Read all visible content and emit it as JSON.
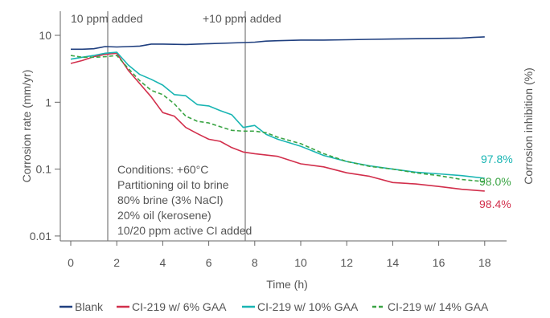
{
  "chart_data": {
    "type": "line",
    "title": "",
    "xlabel": "Time (h)",
    "ylabel": "Corrosion rate (mm/yr)",
    "y2label": "Corrosion inhibition (%)",
    "xlim": [
      -0.5,
      19.5
    ],
    "ylim": [
      0.01,
      14
    ],
    "yscale": "log",
    "grid": false,
    "x_ticks": [
      0,
      2,
      4,
      6,
      8,
      10,
      12,
      14,
      16,
      18
    ],
    "y_ticks": [
      {
        "value": 10,
        "label": "10"
      },
      {
        "value": 1,
        "label": "1"
      },
      {
        "value": 0.1,
        "label": "0.1"
      },
      {
        "value": 0.01,
        "label": "0.01"
      }
    ],
    "events": [
      {
        "x": 2,
        "label": "10 ppm added"
      },
      {
        "x": 8,
        "label": "+10 ppm added"
      }
    ],
    "conditions": [
      "Conditions: +60°C",
      "Partitioning oil to brine",
      "80% brine (3% NaCl)",
      "20% oil (kerosene)",
      "10/20 ppm active CI added"
    ],
    "legend_position": "bottom",
    "series": [
      {
        "name": "Blank",
        "color": "#1f3f7f",
        "dash": "solid",
        "x": [
          0,
          0.5,
          1,
          1.5,
          2,
          2.5,
          3,
          3.5,
          4,
          5,
          6,
          7,
          8,
          8.5,
          9,
          10,
          11,
          12,
          13,
          14,
          15,
          16,
          17,
          17.5,
          18
        ],
        "y": [
          6.2,
          6.2,
          6.3,
          6.8,
          6.7,
          6.8,
          6.9,
          7.4,
          7.4,
          7.3,
          7.5,
          7.7,
          7.9,
          8.2,
          8.3,
          8.5,
          8.5,
          8.6,
          8.7,
          8.8,
          8.9,
          9.0,
          9.1,
          9.3,
          9.5
        ]
      },
      {
        "name": "CI-219 w/ 6% GAA",
        "color": "#d22f4c",
        "dash": "solid",
        "end_label": "98.4%",
        "x": [
          0,
          0.5,
          1,
          1.5,
          2,
          2.5,
          3,
          3.5,
          4,
          4.5,
          5,
          5.5,
          6,
          6.5,
          7,
          7.5,
          8,
          9,
          10,
          11,
          12,
          13,
          14,
          15,
          16,
          17,
          18
        ],
        "y": [
          3.8,
          4.2,
          4.8,
          5.2,
          5.4,
          3.0,
          1.9,
          1.2,
          0.7,
          0.62,
          0.42,
          0.34,
          0.28,
          0.26,
          0.21,
          0.18,
          0.17,
          0.155,
          0.12,
          0.108,
          0.088,
          0.078,
          0.063,
          0.06,
          0.055,
          0.05,
          0.047
        ]
      },
      {
        "name": "CI-219 w/ 10% GAA",
        "color": "#19b5b3",
        "dash": "solid",
        "end_label": "97.8%",
        "x": [
          0,
          0.5,
          1,
          1.5,
          2,
          2.5,
          3,
          3.5,
          4,
          4.5,
          5,
          5.5,
          6,
          6.5,
          7,
          7.5,
          8,
          8.5,
          9,
          10,
          11,
          12,
          13,
          14,
          15,
          16,
          17,
          18
        ],
        "y": [
          4.4,
          4.7,
          5.0,
          5.4,
          5.6,
          3.6,
          2.6,
          2.2,
          1.8,
          1.3,
          1.25,
          0.92,
          0.88,
          0.75,
          0.65,
          0.42,
          0.45,
          0.33,
          0.28,
          0.22,
          0.16,
          0.13,
          0.112,
          0.1,
          0.09,
          0.085,
          0.08,
          0.073
        ]
      },
      {
        "name": "CI-219 w/ 14% GAA",
        "color": "#3aa444",
        "dash": "dashed",
        "end_label": "98.0%",
        "x": [
          0,
          0.5,
          1,
          1.5,
          2,
          2.5,
          3,
          3.5,
          4,
          4.5,
          5,
          5.5,
          6,
          6.5,
          7,
          7.5,
          8,
          8.5,
          9,
          10,
          11,
          12,
          13,
          14,
          15,
          16,
          17,
          18
        ],
        "y": [
          5.0,
          4.7,
          4.7,
          4.8,
          5.0,
          3.2,
          2.1,
          1.5,
          1.3,
          0.95,
          0.62,
          0.52,
          0.49,
          0.43,
          0.38,
          0.37,
          0.37,
          0.35,
          0.3,
          0.24,
          0.17,
          0.13,
          0.11,
          0.1,
          0.088,
          0.08,
          0.07,
          0.065
        ]
      }
    ]
  }
}
